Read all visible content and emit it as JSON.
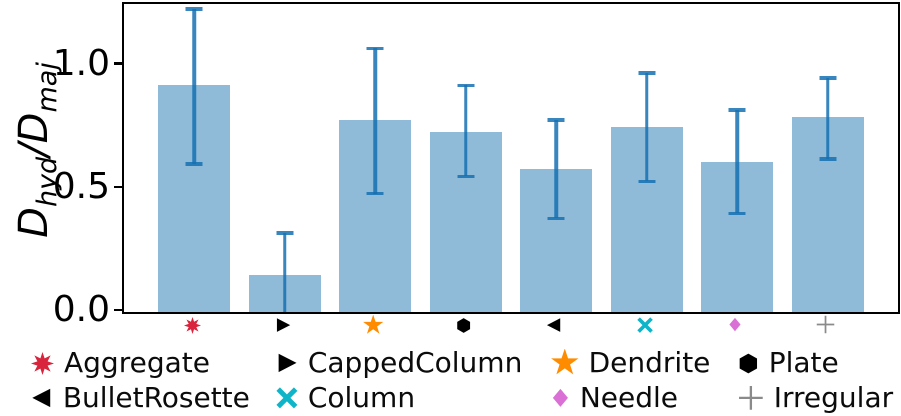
{
  "chart_data": {
    "type": "bar",
    "title": "",
    "xlabel": "",
    "ylabel": "D_hyd/D_maj",
    "ylabel_parts": {
      "num_base": "D",
      "num_sub": "hyd",
      "slash": "/",
      "den_base": "D",
      "den_sub": "maj"
    },
    "ylim": [
      0,
      1.25
    ],
    "yticks": [
      {
        "value": 0.0,
        "label": "0.0"
      },
      {
        "value": 0.5,
        "label": "0.5"
      },
      {
        "value": 1.0,
        "label": "1.0"
      }
    ],
    "grid": false,
    "legend_position": "below-axis, 4 columns x 2 rows",
    "bar_fill_color": "rgba(31,119,180,0.5)",
    "error_bar_color": "rgba(21,113,177,0.85)",
    "categories": [
      {
        "label": "Aggregate",
        "marker": "burst8",
        "marker_color": "#d8243c",
        "value": 0.92,
        "err_low": 0.6,
        "err_high": 1.23
      },
      {
        "label": "CappedColumn",
        "marker": "triangle-right",
        "marker_color": "#000000",
        "value": 0.15,
        "err_low": 0.0,
        "err_high": 0.32
      },
      {
        "label": "Dendrite",
        "marker": "star5",
        "marker_color": "#ff8c00",
        "value": 0.78,
        "err_low": 0.48,
        "err_high": 1.07
      },
      {
        "label": "Plate",
        "marker": "hexagon",
        "marker_color": "#000000",
        "value": 0.73,
        "err_low": 0.55,
        "err_high": 0.92
      },
      {
        "label": "BulletRosette",
        "marker": "triangle-left",
        "marker_color": "#000000",
        "value": 0.58,
        "err_low": 0.38,
        "err_high": 0.78
      },
      {
        "label": "Column",
        "marker": "x-thick",
        "marker_color": "#0eb5c8",
        "value": 0.75,
        "err_low": 0.53,
        "err_high": 0.97
      },
      {
        "label": "Needle",
        "marker": "diamond",
        "marker_color": "#da70d6",
        "value": 0.61,
        "err_low": 0.4,
        "err_high": 0.82
      },
      {
        "label": "Irregular",
        "marker": "plus",
        "marker_color": "#8a8a8a",
        "value": 0.79,
        "err_low": 0.62,
        "err_high": 0.95
      }
    ]
  }
}
